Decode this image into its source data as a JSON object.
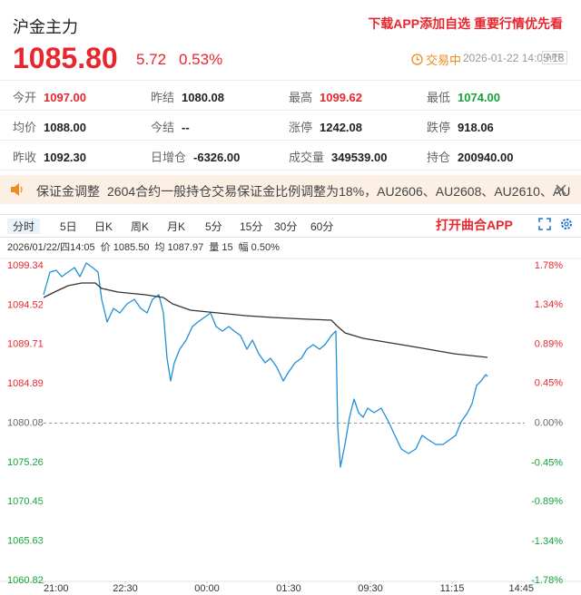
{
  "header": {
    "title": "沪金主力",
    "promo": "下载APP添加自选 重要行情优先看",
    "price": "1085.80",
    "change": "5.72",
    "change_pct": "0.53%",
    "status": "交易中",
    "time": "2026-01-22 14:05:18",
    "badge": "APP"
  },
  "stats": [
    [
      {
        "label": "今开",
        "value": "1097.00",
        "color": "#e8262d"
      },
      {
        "label": "昨结",
        "value": "1080.08",
        "color": "#222222"
      },
      {
        "label": "最高",
        "value": "1099.62",
        "color": "#e8262d"
      },
      {
        "label": "最低",
        "value": "1074.00",
        "color": "#13a33a"
      }
    ],
    [
      {
        "label": "均价",
        "value": "1088.00",
        "color": "#222222"
      },
      {
        "label": "今结",
        "value": "--",
        "color": "#222222"
      },
      {
        "label": "涨停",
        "value": "1242.08",
        "color": "#222222"
      },
      {
        "label": "跌停",
        "value": "918.06",
        "color": "#222222"
      }
    ],
    [
      {
        "label": "昨收",
        "value": "1092.30",
        "color": "#222222"
      },
      {
        "label": "日增仓",
        "value": "-6326.00",
        "color": "#222222"
      },
      {
        "label": "成交量",
        "value": "349539.00",
        "color": "#222222"
      },
      {
        "label": "持仓",
        "value": "200940.00",
        "color": "#222222"
      }
    ]
  ],
  "notice": {
    "title": "保证金调整",
    "text": "2604合约一般持仓交易保证金比例调整为18%，AU2606、AU2608、AU2610、AU"
  },
  "tabs": [
    "分时",
    "5日",
    "日K",
    "周K",
    "月K",
    "5分",
    "15分",
    "30分",
    "60分"
  ],
  "open_app": "打开曲合APP",
  "crosshair": {
    "time": "2026/01/22/四14:05",
    "price_label": "价",
    "price": "1085.50",
    "avg_label": "均",
    "avg": "1087.97",
    "vol_label": "量",
    "vol": "15",
    "amp_label": "幅",
    "amp": "0.50%"
  },
  "chart_data": {
    "type": "line",
    "xlim": [
      0,
      540
    ],
    "xticks": [
      {
        "value": 0,
        "label": "21:00"
      },
      {
        "value": 90,
        "label": "22:30"
      },
      {
        "value": 180,
        "label": "00:00"
      },
      {
        "value": 270,
        "label": "01:30"
      },
      {
        "value": 360,
        "label": "09:30"
      },
      {
        "value": 450,
        "label": "11:15"
      },
      {
        "value": 540,
        "label": "14:45"
      }
    ],
    "ylim": [
      1060.82,
      1099.34
    ],
    "yticks": [
      1060.82,
      1065.63,
      1070.45,
      1075.26,
      1080.08,
      1084.89,
      1089.71,
      1094.52,
      1099.34
    ],
    "y2lim": [
      -1.78,
      1.78
    ],
    "y2ticks": [
      {
        "value": -1.78,
        "label": "-1.78%"
      },
      {
        "value": -1.34,
        "label": "-1.34%"
      },
      {
        "value": -0.89,
        "label": "-0.89%"
      },
      {
        "value": -0.45,
        "label": "-0.45%"
      },
      {
        "value": 0,
        "label": "0.00%"
      },
      {
        "value": 0.45,
        "label": "0.45%"
      },
      {
        "value": 0.89,
        "label": "0.89%"
      },
      {
        "value": 1.34,
        "label": "1.34%"
      },
      {
        "value": 1.78,
        "label": "1.78%"
      }
    ],
    "up_color": "#e8262d",
    "down_color": "#13a33a",
    "flat_color": "#666666",
    "series": [
      {
        "color": "#1f8fd6",
        "x": [
          0,
          7,
          14,
          20,
          27,
          34,
          40,
          47,
          54,
          60,
          64,
          70,
          77,
          84,
          92,
          100,
          107,
          114,
          120,
          127,
          132,
          136,
          140,
          144,
          150,
          157,
          164,
          170,
          177,
          184,
          190,
          197,
          204,
          210,
          217,
          224,
          230,
          237,
          244,
          250,
          257,
          264,
          270,
          277,
          284,
          290,
          297,
          304,
          310,
          317,
          322,
          324,
          327,
          332,
          337,
          342,
          347,
          352,
          357,
          364,
          372,
          380,
          387,
          394,
          402,
          410,
          417,
          424,
          432,
          440,
          447,
          454,
          460,
          467,
          472,
          477,
          482,
          487,
          489
        ],
        "values": [
          1095.79,
          1098.56,
          1098.79,
          1098.01,
          1098.56,
          1099.12,
          1098.01,
          1099.67,
          1099.12,
          1098.56,
          1095.23,
          1092.46,
          1094.12,
          1093.57,
          1094.68,
          1095.23,
          1094.12,
          1093.57,
          1095.23,
          1095.79,
          1093.57,
          1088.02,
          1085.24,
          1087.46,
          1089.13,
          1090.24,
          1091.9,
          1092.46,
          1093.01,
          1093.57,
          1091.9,
          1091.35,
          1091.9,
          1091.35,
          1090.79,
          1089.13,
          1090.24,
          1088.57,
          1087.46,
          1088.02,
          1086.91,
          1085.24,
          1086.35,
          1087.46,
          1088.02,
          1089.13,
          1089.68,
          1089.13,
          1089.68,
          1090.79,
          1091.35,
          1079.69,
          1074.7,
          1077.47,
          1080.8,
          1083.02,
          1081.36,
          1080.8,
          1081.91,
          1081.36,
          1081.91,
          1080.25,
          1078.58,
          1076.92,
          1076.36,
          1076.92,
          1078.58,
          1078.03,
          1077.47,
          1077.47,
          1078.03,
          1078.58,
          1080.25,
          1081.36,
          1082.47,
          1084.69,
          1085.24,
          1086.02,
          1085.8
        ]
      },
      {
        "color": "#333333",
        "x": [
          0,
          12,
          27,
          42,
          57,
          64,
          82,
          112,
          132,
          142,
          162,
          192,
          222,
          252,
          292,
          317,
          324,
          332,
          352,
          382,
          412,
          452,
          489
        ],
        "values": [
          1095.46,
          1096.12,
          1096.9,
          1097.23,
          1097.23,
          1096.57,
          1096.12,
          1095.79,
          1095.46,
          1094.68,
          1093.9,
          1093.57,
          1093.23,
          1093.01,
          1092.79,
          1092.68,
          1091.9,
          1091.12,
          1090.46,
          1089.9,
          1089.35,
          1088.57,
          1088.13
        ]
      }
    ]
  }
}
